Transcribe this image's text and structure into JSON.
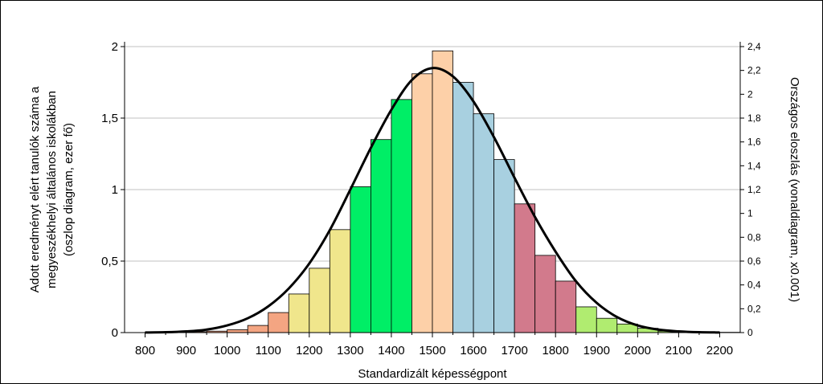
{
  "chart_data": {
    "type": "bar",
    "xlabel": "Standardizált képességpont",
    "ylabel_lines": [
      "Adott eredményt elért tanulók száma a",
      "megyeszékhelyi általános iskolákban",
      "(oszlop diagram, ezer fő)"
    ],
    "y2label": "Országos eloszlás (vonaldiagram, x0.001)",
    "xlim": [
      750,
      2250
    ],
    "ylim": [
      0,
      2
    ],
    "y2lim": [
      0,
      2.4
    ],
    "x_ticks": [
      800,
      900,
      1000,
      1100,
      1200,
      1300,
      1400,
      1500,
      1600,
      1700,
      1800,
      1900,
      2000,
      2100,
      2200
    ],
    "y_ticks": [
      {
        "value": 0,
        "label": "0"
      },
      {
        "value": 0.5,
        "label": "0,5"
      },
      {
        "value": 1,
        "label": "1"
      },
      {
        "value": 1.5,
        "label": "1,5"
      },
      {
        "value": 2,
        "label": "2"
      }
    ],
    "y2_ticks": [
      {
        "value": 0,
        "label": "0"
      },
      {
        "value": 0.2,
        "label": "0,2"
      },
      {
        "value": 0.4,
        "label": "0,4"
      },
      {
        "value": 0.6,
        "label": "0,6"
      },
      {
        "value": 0.8,
        "label": "0,8"
      },
      {
        "value": 1,
        "label": "1"
      },
      {
        "value": 1.2,
        "label": "1,2"
      },
      {
        "value": 1.4,
        "label": "1,4"
      },
      {
        "value": 1.6,
        "label": "1,6"
      },
      {
        "value": 1.8,
        "label": "1,8"
      },
      {
        "value": 2,
        "label": "2"
      },
      {
        "value": 2.2,
        "label": "2,2"
      },
      {
        "value": 2.4,
        "label": "2,4"
      }
    ],
    "grid": "horizontal",
    "bin_width": 50,
    "bars": [
      {
        "x": 825,
        "value": 0.002,
        "color": "#f4a582"
      },
      {
        "x": 875,
        "value": 0.004,
        "color": "#f4a582"
      },
      {
        "x": 925,
        "value": 0.006,
        "color": "#f4a582"
      },
      {
        "x": 975,
        "value": 0.01,
        "color": "#f4a582"
      },
      {
        "x": 1025,
        "value": 0.02,
        "color": "#f4a582"
      },
      {
        "x": 1075,
        "value": 0.05,
        "color": "#f4a582"
      },
      {
        "x": 1125,
        "value": 0.14,
        "color": "#f4a582"
      },
      {
        "x": 1175,
        "value": 0.27,
        "color": "#f0e68c"
      },
      {
        "x": 1225,
        "value": 0.45,
        "color": "#f0e68c"
      },
      {
        "x": 1275,
        "value": 0.72,
        "color": "#f0e68c"
      },
      {
        "x": 1325,
        "value": 1.02,
        "color": "#00ee66"
      },
      {
        "x": 1375,
        "value": 1.35,
        "color": "#00ee66"
      },
      {
        "x": 1425,
        "value": 1.63,
        "color": "#00ee66"
      },
      {
        "x": 1475,
        "value": 1.81,
        "color": "#fdd0a8"
      },
      {
        "x": 1525,
        "value": 1.97,
        "color": "#fdd0a8"
      },
      {
        "x": 1575,
        "value": 1.75,
        "color": "#a8d0e0"
      },
      {
        "x": 1625,
        "value": 1.53,
        "color": "#a8d0e0"
      },
      {
        "x": 1675,
        "value": 1.21,
        "color": "#a8d0e0"
      },
      {
        "x": 1725,
        "value": 0.9,
        "color": "#d27a8c"
      },
      {
        "x": 1775,
        "value": 0.54,
        "color": "#d27a8c"
      },
      {
        "x": 1825,
        "value": 0.36,
        "color": "#d27a8c"
      },
      {
        "x": 1875,
        "value": 0.18,
        "color": "#b0ec70"
      },
      {
        "x": 1925,
        "value": 0.1,
        "color": "#b0ec70"
      },
      {
        "x": 1975,
        "value": 0.06,
        "color": "#b0ec70"
      },
      {
        "x": 2025,
        "value": 0.03,
        "color": "#b0ec70"
      },
      {
        "x": 2075,
        "value": 0.01,
        "color": "#b0ec70"
      },
      {
        "x": 2125,
        "value": 0.005,
        "color": "#b0ec70"
      },
      {
        "x": 2175,
        "value": 0.003,
        "color": "#b0ec70"
      },
      {
        "x": 2225,
        "value": 0.002,
        "color": "#b0ec70"
      }
    ],
    "curve": {
      "color": "#000000",
      "x": [
        800,
        850,
        900,
        950,
        1000,
        1050,
        1100,
        1150,
        1200,
        1250,
        1300,
        1350,
        1400,
        1450,
        1500,
        1550,
        1600,
        1650,
        1700,
        1750,
        1800,
        1850,
        1900,
        1950,
        2000,
        2050,
        2100,
        2150,
        2200
      ],
      "y2": [
        0.001,
        0.003,
        0.01,
        0.025,
        0.06,
        0.12,
        0.22,
        0.37,
        0.58,
        0.86,
        1.2,
        1.55,
        1.87,
        2.12,
        2.22,
        2.15,
        1.94,
        1.64,
        1.3,
        0.97,
        0.68,
        0.43,
        0.25,
        0.13,
        0.06,
        0.025,
        0.01,
        0.003,
        0.001
      ]
    }
  }
}
